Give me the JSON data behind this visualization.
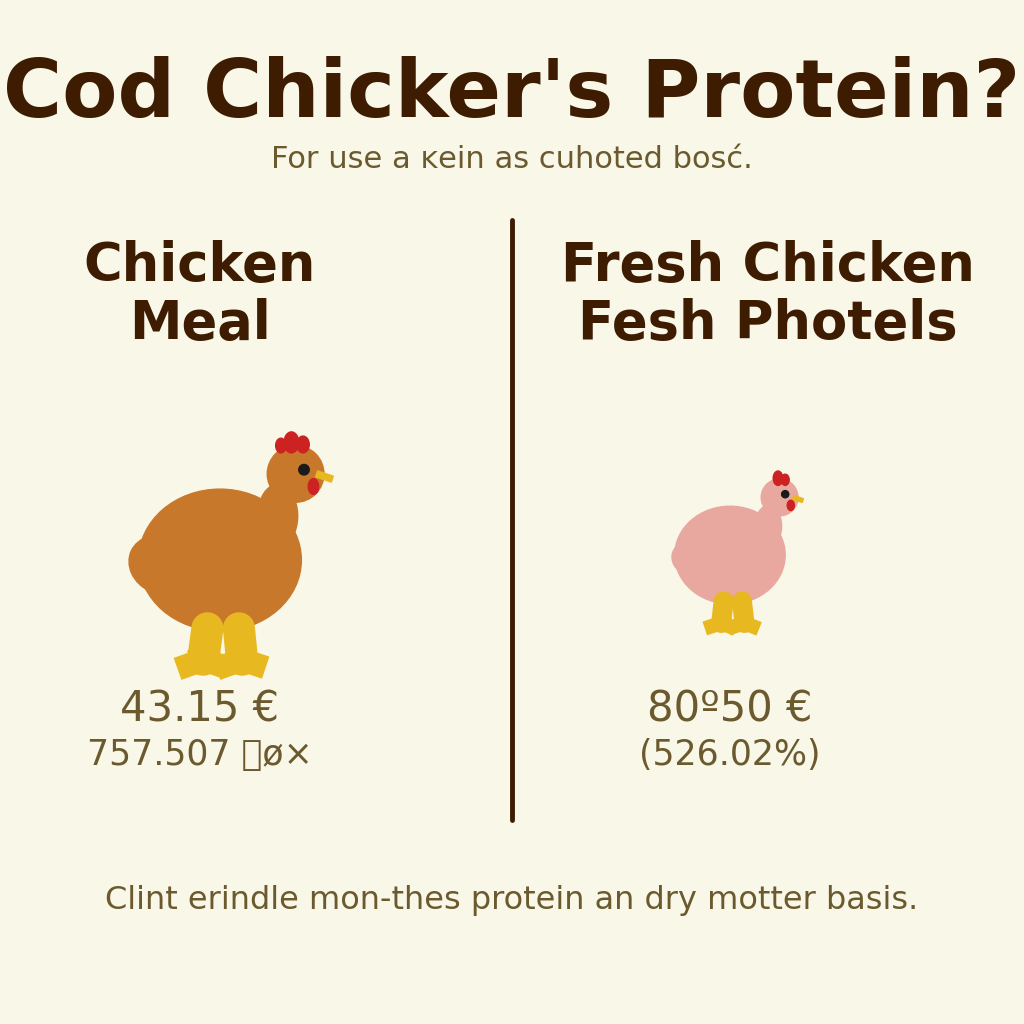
{
  "background_color": "#f9f7e8",
  "title": "Cod Chicker's Protein?",
  "subtitle": "For use a ĸein as cuhoted bosć.",
  "title_color": "#3d1c02",
  "subtitle_color": "#6b5a2e",
  "left_label": "Chicken\nMeal",
  "right_label": "Fresh Chicken\nFesh Photels",
  "label_color": "#3d1c02",
  "left_value1": "43.15 €",
  "left_value2": "757.507 亟ø×",
  "right_value1": "80º50 €",
  "right_value2": "(526.02%)",
  "value_color": "#6b5a2e",
  "footer": "Clint erindle mon-thes protein an dry motter basis.",
  "footer_color": "#6b5a2e",
  "divider_color": "#3d1c02",
  "big_chicken_color": "#c8782a",
  "small_chicken_color": "#e8a8a0",
  "chicken_accent_red": "#cc2222",
  "chicken_accent_yellow": "#e8b820",
  "chicken_eye_color": "#1a1a1a"
}
